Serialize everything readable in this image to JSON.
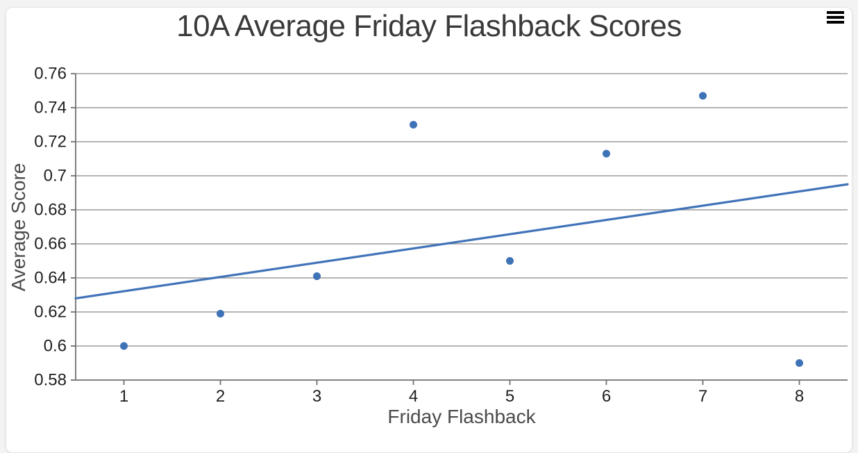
{
  "page": {
    "background": "#f3f3f3",
    "card_background": "#ffffff",
    "card_border": "#e4e4e4"
  },
  "menu": {
    "icon": "hamburger-menu-icon"
  },
  "chart_data": {
    "type": "scatter",
    "title": "10A Average Friday Flashback Scores",
    "xlabel": "Friday Flashback",
    "ylabel": "Average Score",
    "series": [
      {
        "name": "scores",
        "type": "scatter",
        "x": [
          1,
          2,
          3,
          4,
          5,
          6,
          7,
          8
        ],
        "y": [
          0.6,
          0.619,
          0.641,
          0.73,
          0.65,
          0.713,
          0.747,
          0.59
        ]
      },
      {
        "name": "trend",
        "type": "line",
        "x": [
          0.5,
          8.5
        ],
        "y": [
          0.628,
          0.695
        ]
      }
    ],
    "xlim": [
      0.5,
      8.5
    ],
    "ylim": [
      0.58,
      0.76
    ],
    "xticks": [
      1,
      2,
      3,
      4,
      5,
      6,
      7,
      8
    ],
    "xtick_labels": [
      "1",
      "2",
      "3",
      "4",
      "5",
      "6",
      "7",
      "8"
    ],
    "yticks": [
      0.58,
      0.6,
      0.62,
      0.64,
      0.66,
      0.68,
      0.7,
      0.72,
      0.74,
      0.76
    ],
    "ytick_labels": [
      "0.58",
      "0.6",
      "0.62",
      "0.64",
      "0.66",
      "0.68",
      "0.7",
      "0.72",
      "0.74",
      "0.76"
    ],
    "grid": "horizontal",
    "legend": "none",
    "colors": {
      "point": "#3f73b7",
      "trend": "#4173b8",
      "grid": "#9b9b9b",
      "axis": "#6f6f6f",
      "title": "#3a3a3a",
      "tick_label": "#1f1f1f",
      "axis_title": "#4a4a4a",
      "menu_icon": "#000000"
    }
  }
}
